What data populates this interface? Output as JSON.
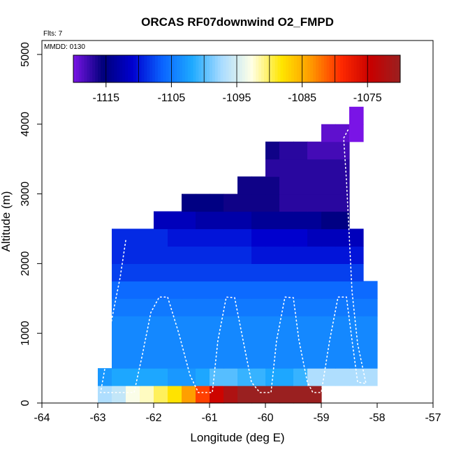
{
  "chart_data": {
    "type": "heatmap",
    "title": "ORCAS RF07downwind O2_FMPD",
    "flights_label": "Flts: 7",
    "mmdd_label": "MMDD: 0130",
    "xlabel": "Longitude (deg E)",
    "ylabel": "Altitude (m)",
    "xlim": [
      -64,
      -57
    ],
    "ylim": [
      0,
      5200
    ],
    "x_ticks": [
      -64,
      -63,
      -62,
      -61,
      -60,
      -59,
      -58,
      -57
    ],
    "x_tick_labels": [
      "-64",
      "-63",
      "-62",
      "-61",
      "-60",
      "-59",
      "-58",
      "-57"
    ],
    "y_ticks": [
      0,
      1000,
      2000,
      3000,
      4000,
      5000
    ],
    "y_tick_labels": [
      "0",
      "1000",
      "2000",
      "3000",
      "4000",
      "5000"
    ],
    "colorbar": {
      "range": [
        -1120,
        -1070
      ],
      "ticks": [
        -1115,
        -1105,
        -1095,
        -1085,
        -1075
      ],
      "tick_labels": [
        "-1115",
        "-1105",
        "-1095",
        "-1085",
        "-1075"
      ],
      "colors": [
        "#7a14e6",
        "#00007a",
        "#0000d0",
        "#0a64ff",
        "#1eaaff",
        "#aadcff",
        "#ffffe6",
        "#ffe600",
        "#ff9900",
        "#ff2a00",
        "#c80000",
        "#9a2020"
      ]
    },
    "bin_width_deg": 0.5,
    "bin_height_m": 250,
    "rows": [
      {
        "alt_bottom": 0,
        "lon_start": -63.0,
        "values": [
          -1097,
          -1096,
          -1093,
          -1092,
          -1090,
          -1088,
          -1084,
          -1080,
          -1075,
          -1072,
          -1069,
          -1070,
          -1069,
          -1068,
          -1069,
          -1070
        ]
      },
      {
        "alt_bottom": 250,
        "lon_start": -63.0,
        "values": [
          -1103,
          -1102,
          -1102,
          -1102,
          -1102,
          -1103,
          -1103,
          -1102,
          -1100,
          -1100,
          -1101,
          -1101,
          -1102,
          -1102,
          -1101,
          -1097,
          -1097,
          -1097,
          -1097,
          -1097
        ]
      },
      {
        "alt_bottom": 500,
        "lon_start": -62.75,
        "values": [
          -1104,
          -1104,
          -1104,
          -1104,
          -1104,
          -1104,
          -1104,
          -1104,
          -1104,
          -1104,
          -1104,
          -1104,
          -1104,
          -1104,
          -1104,
          -1104,
          -1104,
          -1104,
          -1104
        ]
      },
      {
        "alt_bottom": 750,
        "lon_start": -62.75,
        "values": [
          -1104,
          -1104,
          -1104,
          -1104,
          -1104,
          -1104,
          -1104,
          -1104,
          -1104,
          -1104,
          -1104,
          -1104,
          -1104,
          -1104,
          -1104,
          -1104,
          -1104,
          -1104,
          -1104
        ]
      },
      {
        "alt_bottom": 1000,
        "lon_start": -62.75,
        "values": [
          -1104,
          -1104,
          -1104,
          -1104,
          -1104,
          -1104,
          -1104,
          -1104,
          -1104,
          -1104,
          -1104,
          -1104,
          -1104,
          -1104,
          -1104,
          -1104,
          -1104,
          -1104,
          -1104
        ]
      },
      {
        "alt_bottom": 1250,
        "lon_start": -62.75,
        "values": [
          -1105,
          -1105,
          -1105,
          -1105,
          -1105,
          -1105,
          -1105,
          -1105,
          -1105,
          -1105,
          -1105,
          -1105,
          -1105,
          -1105,
          -1105,
          -1105,
          -1105,
          -1105,
          -1105
        ]
      },
      {
        "alt_bottom": 1500,
        "lon_start": -62.75,
        "values": [
          -1106,
          -1106,
          -1106,
          -1106,
          -1106,
          -1106,
          -1106,
          -1106,
          -1106,
          -1106,
          -1106,
          -1106,
          -1106,
          -1106,
          -1106,
          -1106,
          -1106,
          -1106,
          -1106
        ]
      },
      {
        "alt_bottom": 1750,
        "lon_start": -62.75,
        "values": [
          -1108,
          -1108,
          -1108,
          -1108,
          -1108,
          -1108,
          -1108,
          -1108,
          -1108,
          -1108,
          -1108,
          -1108,
          -1108,
          -1108,
          -1108,
          -1108,
          -1108,
          -1108
        ]
      },
      {
        "alt_bottom": 2000,
        "lon_start": -62.75,
        "values": [
          -1109,
          -1109,
          -1109,
          -1109,
          -1109,
          -1109,
          -1109,
          -1109,
          -1109,
          -1109,
          -1110,
          -1110,
          -1110,
          -1110,
          -1110,
          -1110,
          -1110,
          -1110
        ]
      },
      {
        "alt_bottom": 2250,
        "lon_start": -62.75,
        "values": [
          -1109,
          -1109,
          -1109,
          -1109,
          -1110,
          -1110,
          -1110,
          -1110,
          -1110,
          -1110,
          -1111,
          -1111,
          -1111,
          -1111,
          -1112,
          -1112,
          -1112,
          -1112
        ]
      },
      {
        "alt_bottom": 2500,
        "lon_start": -62.0,
        "values": [
          -1112,
          -1112,
          -1112,
          -1113,
          -1113,
          -1113,
          -1113,
          -1114,
          -1114,
          -1114,
          -1114,
          -1114,
          -1115,
          -1115
        ]
      },
      {
        "alt_bottom": 2750,
        "lon_start": -61.5,
        "values": [
          -1115,
          -1115,
          -1115,
          -1116,
          -1116,
          -1116,
          -1116,
          -1117,
          -1117,
          -1117,
          -1117,
          -1117
        ]
      },
      {
        "alt_bottom": 3000,
        "lon_start": -60.5,
        "values": [
          -1116,
          -1116,
          -1116,
          -1117,
          -1117,
          -1117,
          -1117,
          -1117
        ]
      },
      {
        "alt_bottom": 3250,
        "lon_start": -60.0,
        "values": [
          -1117,
          -1117,
          -1117,
          -1117,
          -1117,
          -1117
        ]
      },
      {
        "alt_bottom": 3500,
        "lon_start": -60.0,
        "values": [
          -1116,
          -1117,
          -1117,
          -1118,
          -1118,
          -1118
        ]
      },
      {
        "alt_bottom": 3750,
        "lon_start": -59.0,
        "values": [
          -1119,
          -1119,
          -1120
        ]
      },
      {
        "alt_bottom": 4000,
        "lon_start": -58.5,
        "values": [
          -1120
        ]
      }
    ],
    "flight_track": [
      [
        -62.5,
        2330
      ],
      [
        -62.6,
        1800
      ],
      [
        -62.75,
        1200
      ],
      [
        -62.85,
        600
      ],
      [
        -62.95,
        150
      ],
      [
        -62.5,
        150
      ],
      [
        -62.35,
        150
      ],
      [
        -62.2,
        700
      ],
      [
        -62.05,
        1300
      ],
      [
        -61.9,
        1520
      ],
      [
        -61.75,
        1520
      ],
      [
        -61.55,
        1000
      ],
      [
        -61.35,
        400
      ],
      [
        -61.2,
        150
      ],
      [
        -60.95,
        150
      ],
      [
        -60.85,
        900
      ],
      [
        -60.7,
        1520
      ],
      [
        -60.55,
        1510
      ],
      [
        -60.4,
        900
      ],
      [
        -60.25,
        300
      ],
      [
        -60.1,
        150
      ],
      [
        -59.9,
        150
      ],
      [
        -59.8,
        900
      ],
      [
        -59.65,
        1520
      ],
      [
        -59.5,
        1510
      ],
      [
        -59.4,
        900
      ],
      [
        -59.25,
        300
      ],
      [
        -59.15,
        150
      ],
      [
        -59.0,
        150
      ],
      [
        -58.85,
        900
      ],
      [
        -58.7,
        1520
      ],
      [
        -58.55,
        1520
      ],
      [
        -58.45,
        900
      ],
      [
        -58.35,
        300
      ],
      [
        -58.2,
        280
      ],
      [
        -58.35,
        850
      ],
      [
        -58.45,
        1600
      ],
      [
        -58.5,
        2400
      ],
      [
        -58.55,
        3200
      ],
      [
        -58.6,
        3800
      ],
      [
        -58.5,
        3950
      ]
    ]
  }
}
